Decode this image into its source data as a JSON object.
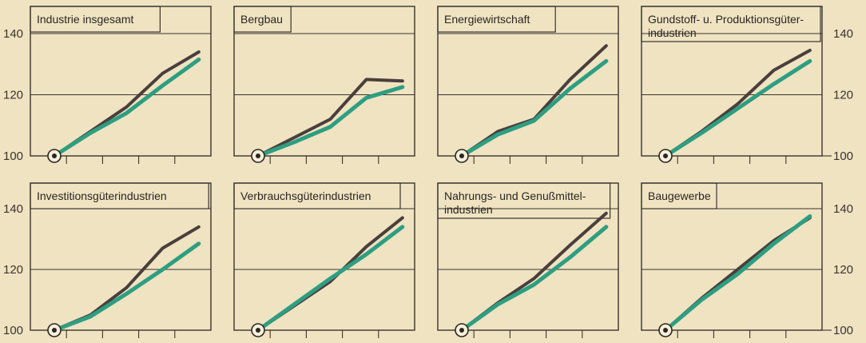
{
  "axis": {
    "ytick_labels_left": [
      "140",
      "120",
      "100"
    ],
    "ytick_labels_right": [
      "140",
      "120",
      "100"
    ]
  },
  "colors": {
    "series_a": "#4a3f3c",
    "series_b": "#2e9e82"
  },
  "chart_data": [
    {
      "type": "line",
      "title": "Industrie insgesamt",
      "x": [
        0,
        1,
        2,
        3,
        4,
        5
      ],
      "ylim": [
        100,
        140
      ],
      "series": [
        {
          "values": [
            100,
            108,
            116,
            127,
            134,
            null
          ]
        },
        {
          "values": [
            100,
            107.5,
            114,
            123,
            131.5,
            null
          ]
        }
      ]
    },
    {
      "type": "line",
      "title": "Bergbau",
      "x": [
        0,
        1,
        2,
        3,
        4,
        5
      ],
      "ylim": [
        100,
        140
      ],
      "series": [
        {
          "values": [
            100,
            106,
            112,
            125,
            124.5,
            null
          ]
        },
        {
          "values": [
            100,
            104.5,
            109.5,
            119,
            122.5,
            null
          ]
        }
      ]
    },
    {
      "type": "line",
      "title": "Energiewirtschaft",
      "x": [
        0,
        1,
        2,
        3,
        4,
        5
      ],
      "ylim": [
        100,
        140
      ],
      "series": [
        {
          "values": [
            100,
            108,
            112,
            125,
            136,
            null
          ]
        },
        {
          "values": [
            100,
            107,
            111.5,
            122,
            131,
            null
          ]
        }
      ]
    },
    {
      "type": "line",
      "title": "Gundstoff- u. Produktionsgüter-industrien",
      "x": [
        0,
        1,
        2,
        3,
        4,
        5
      ],
      "ylim": [
        100,
        140
      ],
      "series": [
        {
          "values": [
            100,
            108,
            117,
            128,
            134.5,
            null
          ]
        },
        {
          "values": [
            100,
            107.5,
            115.5,
            123.5,
            131,
            null
          ]
        }
      ]
    },
    {
      "type": "line",
      "title": "Investitionsgüterindustrien",
      "x": [
        0,
        1,
        2,
        3,
        4,
        5
      ],
      "ylim": [
        100,
        140
      ],
      "series": [
        {
          "values": [
            100,
            105,
            114,
            127,
            134,
            null
          ]
        },
        {
          "values": [
            100,
            104.5,
            112,
            120,
            128.5,
            null
          ]
        }
      ]
    },
    {
      "type": "line",
      "title": "Verbrauchsgüterindustrien",
      "x": [
        0,
        1,
        2,
        3,
        4,
        5
      ],
      "ylim": [
        100,
        140
      ],
      "series": [
        {
          "values": [
            100,
            108,
            116,
            127.5,
            137,
            null
          ]
        },
        {
          "values": [
            100,
            108.5,
            117,
            125,
            134,
            null
          ]
        }
      ]
    },
    {
      "type": "line",
      "title": "Nahrungs- und Genußmittel-industrien",
      "x": [
        0,
        1,
        2,
        3,
        4,
        5
      ],
      "ylim": [
        100,
        140
      ],
      "series": [
        {
          "values": [
            100,
            109,
            117,
            128,
            138.5,
            null
          ]
        },
        {
          "values": [
            100,
            108.5,
            115,
            124,
            134,
            null
          ]
        }
      ]
    },
    {
      "type": "line",
      "title": "Baugewerbe",
      "x": [
        0,
        1,
        2,
        3,
        4,
        5
      ],
      "ylim": [
        100,
        140
      ],
      "series": [
        {
          "values": [
            100,
            110.5,
            120,
            129.5,
            137,
            null
          ]
        },
        {
          "values": [
            100,
            110,
            118.5,
            128.5,
            137.5,
            null
          ]
        }
      ]
    }
  ]
}
